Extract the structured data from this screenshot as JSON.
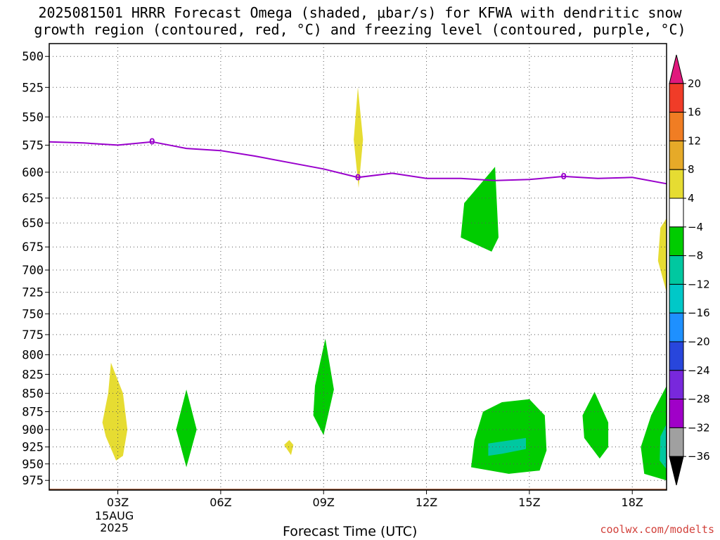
{
  "header": {
    "title_line1": "2025081501 HRRR Forecast Omega (shaded, μbar/s) for KFWA with dendritic snow",
    "title_line2": "growth region (contoured, red, °C) and freezing level (contoured, purple, °C)"
  },
  "footer": {
    "xlabel": "Forecast Time (UTC)",
    "watermark": "coolwx.com/modelts"
  },
  "chart_data": {
    "type": "contour",
    "title": "2025081501 HRRR Forecast Omega (shaded, μbar/s) for KFWA with dendritic snow growth region (contoured, red, °C) and freezing level (contoured, purple, °C)",
    "xlabel": "Forecast Time (UTC)",
    "ylabel": "",
    "x_range_hours_utc": [
      1,
      19
    ],
    "y_range_hpa": [
      990,
      490
    ],
    "y_scale": "log",
    "grid": true,
    "x_ticks": [
      {
        "hour": 3,
        "label": "03Z",
        "sub1": "15AUG",
        "sub2": "2025"
      },
      {
        "hour": 6,
        "label": "06Z"
      },
      {
        "hour": 9,
        "label": "09Z"
      },
      {
        "hour": 12,
        "label": "12Z"
      },
      {
        "hour": 15,
        "label": "15Z"
      },
      {
        "hour": 18,
        "label": "18Z"
      }
    ],
    "y_ticks": [
      500,
      525,
      550,
      575,
      600,
      625,
      650,
      675,
      700,
      725,
      750,
      775,
      800,
      825,
      850,
      875,
      900,
      925,
      950,
      975
    ],
    "freezing_level": {
      "color": "#9900cc",
      "label": "0",
      "label_hours": [
        4,
        10,
        16
      ],
      "points": [
        [
          1,
          572
        ],
        [
          2,
          573
        ],
        [
          3,
          575
        ],
        [
          4,
          572
        ],
        [
          5,
          578
        ],
        [
          6,
          580
        ],
        [
          7,
          585
        ],
        [
          8,
          591
        ],
        [
          9,
          597
        ],
        [
          10,
          605
        ],
        [
          11,
          601
        ],
        [
          12,
          606
        ],
        [
          13,
          606
        ],
        [
          14,
          608
        ],
        [
          15,
          607
        ],
        [
          16,
          604
        ],
        [
          17,
          606
        ],
        [
          18,
          605
        ],
        [
          19,
          611
        ]
      ]
    },
    "omega_regions": [
      {
        "band": "4 to 8",
        "color": "#e6dc32",
        "points": [
          [
            10,
            525
          ],
          [
            10.15,
            570
          ],
          [
            10.02,
            615
          ],
          [
            9.88,
            570
          ]
        ]
      },
      {
        "band": "4 to 8",
        "color": "#e6dc32",
        "points": [
          [
            2.8,
            810
          ],
          [
            3.15,
            850
          ],
          [
            3.28,
            900
          ],
          [
            3.15,
            938
          ],
          [
            2.95,
            945
          ],
          [
            2.65,
            910
          ],
          [
            2.55,
            890
          ],
          [
            2.72,
            850
          ]
        ]
      },
      {
        "band": "4 to 8",
        "color": "#e6dc32",
        "points": [
          [
            8.0,
            915
          ],
          [
            8.12,
            922
          ],
          [
            8.05,
            937
          ],
          [
            7.85,
            922
          ]
        ]
      },
      {
        "band": "4 to 8",
        "color": "#e6dc32",
        "points": [
          [
            19,
            645
          ],
          [
            18.82,
            655
          ],
          [
            18.75,
            690
          ],
          [
            19,
            725
          ]
        ]
      },
      {
        "band": "-8 to -4",
        "color": "#00cc00",
        "points": [
          [
            14,
            595
          ],
          [
            14.1,
            665
          ],
          [
            13.9,
            680
          ],
          [
            13.0,
            665
          ],
          [
            13.1,
            630
          ]
        ]
      },
      {
        "band": "-8 to -4",
        "color": "#00cc00",
        "points": [
          [
            5.0,
            845
          ],
          [
            5.3,
            900
          ],
          [
            5.0,
            955
          ],
          [
            4.7,
            900
          ]
        ]
      },
      {
        "band": "-8 to -4",
        "color": "#00cc00",
        "points": [
          [
            9.05,
            780
          ],
          [
            9.3,
            845
          ],
          [
            9.0,
            908
          ],
          [
            8.7,
            880
          ],
          [
            8.75,
            840
          ]
        ]
      },
      {
        "band": "-8 to -4",
        "color": "#00cc00",
        "points": [
          [
            15.0,
            858
          ],
          [
            15.45,
            880
          ],
          [
            15.5,
            930
          ],
          [
            15.3,
            960
          ],
          [
            14.4,
            965
          ],
          [
            13.3,
            955
          ],
          [
            13.4,
            915
          ],
          [
            13.65,
            875
          ],
          [
            14.2,
            862
          ]
        ]
      },
      {
        "band": "-8 to -4",
        "color": "#00cc00",
        "points": [
          [
            16.9,
            848
          ],
          [
            17.3,
            890
          ],
          [
            17.3,
            925
          ],
          [
            17.05,
            942
          ],
          [
            16.6,
            912
          ],
          [
            16.55,
            880
          ]
        ]
      },
      {
        "band": "-8 to -4",
        "color": "#00cc00",
        "points": [
          [
            19,
            840
          ],
          [
            18.55,
            880
          ],
          [
            18.25,
            925
          ],
          [
            18.35,
            965
          ],
          [
            19,
            975
          ]
        ]
      },
      {
        "band": "-12 to -8",
        "color": "#00c8a0",
        "points": [
          [
            13.8,
            920
          ],
          [
            14.9,
            912
          ],
          [
            14.9,
            928
          ],
          [
            14.2,
            935
          ],
          [
            13.8,
            938
          ]
        ]
      },
      {
        "band": "-12 to -8",
        "color": "#00c8a0",
        "points": [
          [
            19,
            892
          ],
          [
            18.82,
            910
          ],
          [
            18.8,
            945
          ],
          [
            19,
            958
          ]
        ]
      }
    ],
    "terrain": {
      "color": "#a0522d",
      "surface_hpa": 988
    },
    "colorbar": {
      "ticks": [
        20,
        16,
        12,
        8,
        4,
        -4,
        -8,
        -12,
        -16,
        -20,
        -24,
        -28,
        -32,
        -36
      ],
      "levels": [
        {
          "range": ">20",
          "color": "#e0197d"
        },
        {
          "range": "16 to 20",
          "color": "#f03c28"
        },
        {
          "range": "12 to 16",
          "color": "#f07d23"
        },
        {
          "range": "8 to 12",
          "color": "#e6aa28"
        },
        {
          "range": "4 to 8",
          "color": "#e6dc32"
        },
        {
          "range": "-4 to 4",
          "color": "#ffffff"
        },
        {
          "range": "-8 to -4",
          "color": "#00cc00"
        },
        {
          "range": "-12 to -8",
          "color": "#00c8a0"
        },
        {
          "range": "-16 to -12",
          "color": "#00c8c8"
        },
        {
          "range": "-20 to -16",
          "color": "#1e90ff"
        },
        {
          "range": "-24 to -20",
          "color": "#2846dc"
        },
        {
          "range": "-28 to -24",
          "color": "#7828dc"
        },
        {
          "range": "-32 to -28",
          "color": "#a000c8"
        },
        {
          "range": "-36 to -32",
          "color": "#a0a0a0"
        },
        {
          "range": "<-36",
          "color": "#000000"
        }
      ]
    }
  }
}
